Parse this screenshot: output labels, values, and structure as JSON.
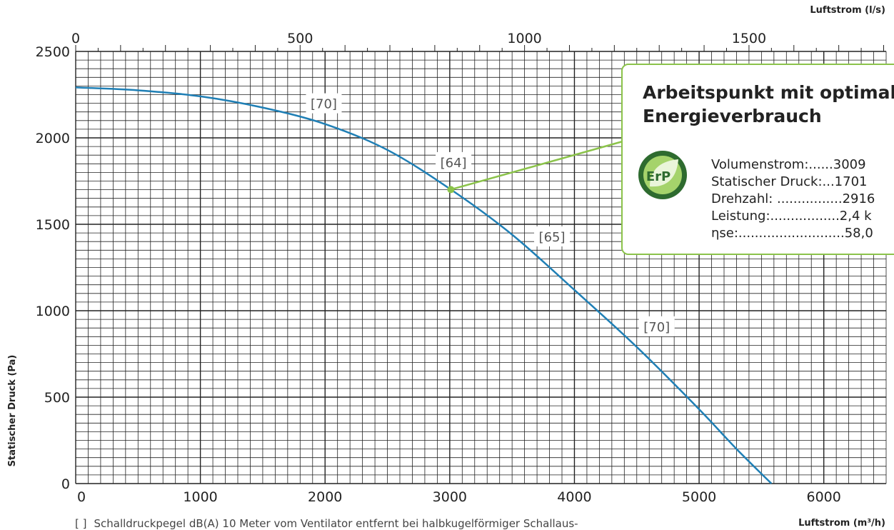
{
  "chart_data": {
    "type": "line",
    "x_axis_bottom": {
      "label": "Luftstrom (m³/h)",
      "range": [
        0,
        6500
      ],
      "ticks": [
        0,
        1000,
        2000,
        3000,
        4000,
        5000,
        6000
      ]
    },
    "x_axis_top": {
      "label": "Luftstrom (l/s)",
      "ticks": [
        0,
        500,
        1000,
        1500
      ]
    },
    "y_axis": {
      "label": "Statischer Druck (Pa)",
      "range": [
        0,
        2500
      ],
      "ticks": [
        0,
        500,
        1000,
        1500,
        2000,
        2500
      ]
    },
    "grid": true,
    "series": [
      {
        "color": "#1f7fb5",
        "x": [
          0,
          500,
          1000,
          1500,
          2000,
          2500,
          3009,
          3500,
          4000,
          4500,
          5000,
          5300,
          5580
        ],
        "y": [
          2292,
          2275,
          2240,
          2175,
          2080,
          1930,
          1701,
          1440,
          1120,
          790,
          430,
          200,
          0
        ]
      }
    ],
    "annotations": [
      {
        "text": "[70]",
        "x": 1990,
        "y": 2200
      },
      {
        "text": "[64]",
        "x": 3030,
        "y": 1860
      },
      {
        "text": "[65]",
        "x": 3820,
        "y": 1430
      },
      {
        "text": "[70]",
        "x": 4660,
        "y": 910
      }
    ],
    "operating_point": {
      "x": 3009,
      "y": 1701,
      "color": "#8bc34a"
    }
  },
  "info_box": {
    "title": "Arbeitspunkt mit optimalem Energieverbrauch",
    "badge": "ErP",
    "lines": [
      "Volumenstrom:......3009",
      "Statischer Druck:...1701",
      "Drehzahl: ................2916",
      "Leistung:.................2,4 k",
      "ηse:..........................58,0"
    ]
  },
  "footnote": {
    "marker": "[ ]",
    "text": "Schalldruckpegel dB(A) 10 Meter vom Ventilator entfernt bei halbkugelförmiger Schallaus-"
  }
}
